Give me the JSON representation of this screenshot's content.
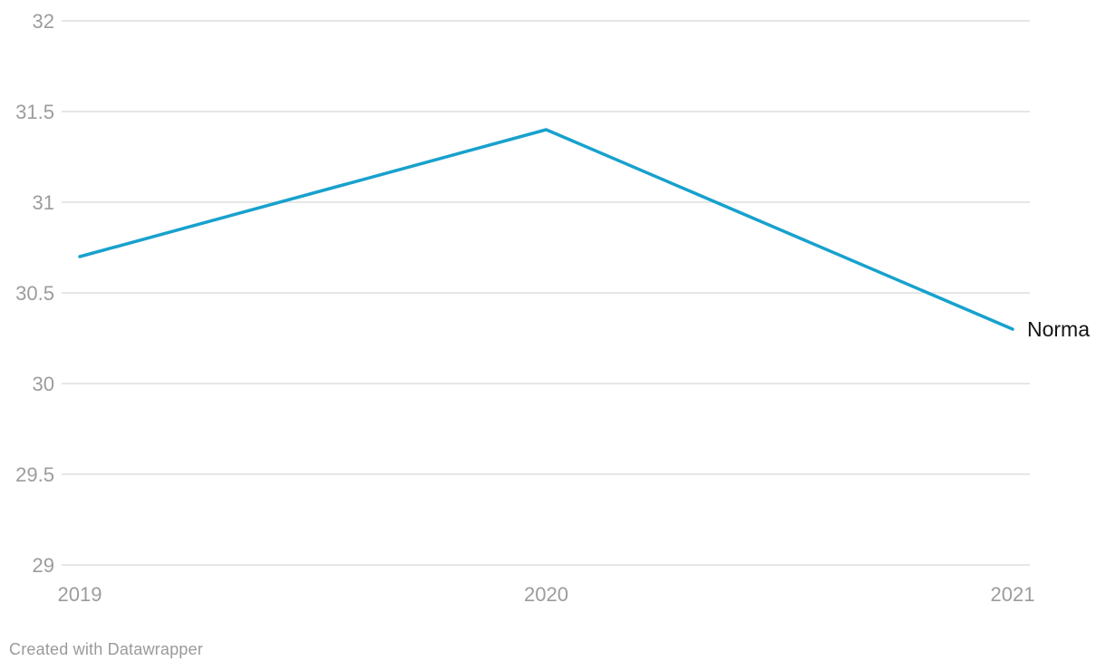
{
  "chart_data": {
    "type": "line",
    "title": "",
    "xlabel": "",
    "ylabel": "",
    "x": [
      2019,
      2020,
      2021
    ],
    "x_tick_labels": [
      "2019",
      "2020",
      "2021"
    ],
    "series": [
      {
        "name": "Norma",
        "values": [
          30.7,
          31.4,
          30.3
        ]
      }
    ],
    "ylim": [
      29,
      32
    ],
    "yticks": [
      32,
      31.5,
      31,
      30.5,
      30,
      29.5,
      29
    ],
    "ytick_labels": [
      "32",
      "31.5",
      "31",
      "30.5",
      "30",
      "29.5",
      "29"
    ],
    "grid": "horizontal",
    "legend_position": "end-of-line-label"
  },
  "colors": {
    "line": "#18a1cd",
    "grid": "#e6e6e6",
    "tick_label": "#9c9c9c",
    "series_label": "#141414",
    "footer_text": "#9a9a9a",
    "background": "#ffffff"
  },
  "footer": {
    "attribution": "Created with Datawrapper"
  }
}
